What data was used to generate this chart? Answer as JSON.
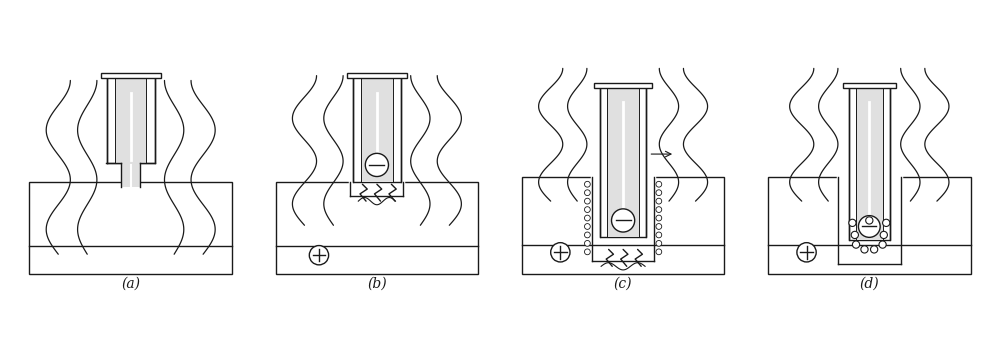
{
  "bg_color": "#ffffff",
  "line_color": "#1a1a1a",
  "fill_color": "#e0e0e0",
  "labels": [
    "(a)",
    "(b)",
    "(c)",
    "(d)"
  ],
  "figsize": [
    10.0,
    3.54
  ],
  "dpi": 100
}
